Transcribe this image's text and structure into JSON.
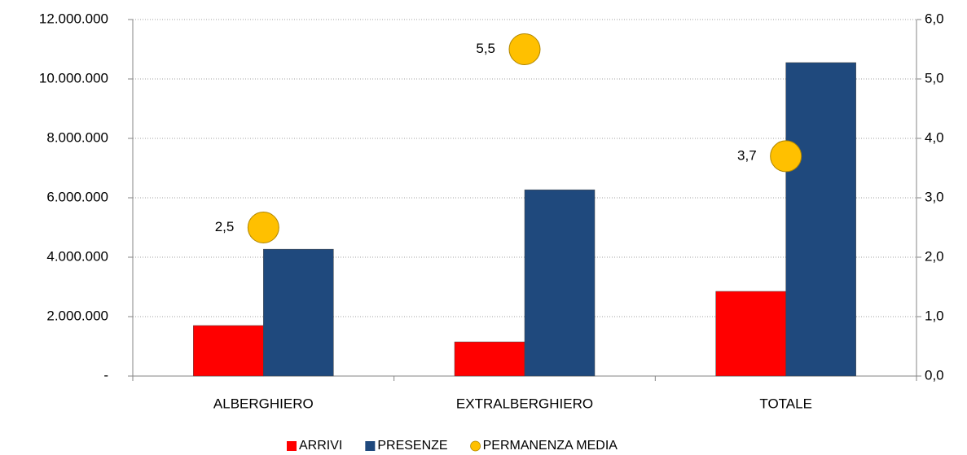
{
  "chart_data": {
    "type": "bar",
    "categories": [
      "ALBERGHIERO",
      "EXTRALBERGHIERO",
      "TOTALE"
    ],
    "series": [
      {
        "name": "ARRIVI",
        "color": "#ff0000",
        "values": [
          1700000,
          1150000,
          2850000
        ]
      },
      {
        "name": "PRESENZE",
        "color": "#1f497d",
        "values": [
          4270000,
          6270000,
          10550000
        ]
      },
      {
        "name": "PERMANENZA MEDIA",
        "color": "#ffc000",
        "type": "scatter",
        "axis": "y2",
        "values": [
          2.5,
          5.5,
          3.7
        ],
        "value_labels": [
          "2,5",
          "5,5",
          "3,7"
        ]
      }
    ],
    "ylim": [
      0,
      12000000
    ],
    "yticks": [
      {
        "value": 0,
        "label": "-"
      },
      {
        "value": 2000000,
        "label": "2.000.000"
      },
      {
        "value": 4000000,
        "label": "4.000.000"
      },
      {
        "value": 6000000,
        "label": "6.000.000"
      },
      {
        "value": 8000000,
        "label": "8.000.000"
      },
      {
        "value": 10000000,
        "label": "10.000.000"
      },
      {
        "value": 12000000,
        "label": "12.000.000"
      }
    ],
    "y2lim": [
      0,
      6
    ],
    "y2ticks": [
      {
        "value": 0,
        "label": "0,0"
      },
      {
        "value": 1,
        "label": "1,0"
      },
      {
        "value": 2,
        "label": "2,0"
      },
      {
        "value": 3,
        "label": "3,0"
      },
      {
        "value": 4,
        "label": "4,0"
      },
      {
        "value": 5,
        "label": "5,0"
      },
      {
        "value": 6,
        "label": "6,0"
      }
    ],
    "grid": true,
    "legend": "bottom"
  }
}
